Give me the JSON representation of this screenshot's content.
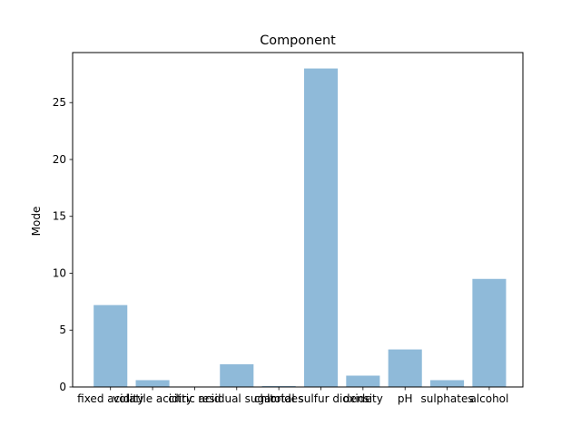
{
  "chart_data": {
    "type": "bar",
    "title": "Component",
    "xlabel": "",
    "ylabel": "Mode",
    "categories": [
      "fixed acidity",
      "volatile acidity",
      "citric acid",
      "residual sugar",
      "chlorides",
      "total sulfur dioxide",
      "density",
      "pH",
      "sulphates",
      "alcohol"
    ],
    "values": [
      7.2,
      0.6,
      0.0,
      2.0,
      0.08,
      28.0,
      0.9968,
      3.3,
      0.6,
      9.5
    ],
    "ylim": [
      0,
      29.4
    ],
    "yticks": [
      0,
      5,
      10,
      15,
      20,
      25
    ],
    "bar_color": "#8fbad9",
    "grid": false,
    "legend": "none"
  }
}
